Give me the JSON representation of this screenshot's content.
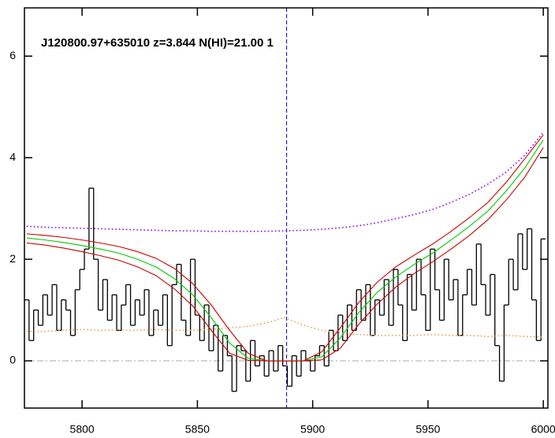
{
  "chart_data": {
    "type": "line",
    "title": "J120800.97+635010 z=3.844 N(HI)=21.00 1",
    "xlim": [
      5775,
      6002
    ],
    "ylim": [
      -0.93,
      6.95
    ],
    "xticks": [
      5800,
      5850,
      5900,
      5950,
      6000
    ],
    "yticks": [
      0,
      2,
      4,
      6
    ],
    "vline": {
      "value": 5888.7,
      "color": "#0000cc"
    },
    "hline": {
      "value": 0,
      "color": "#aaaaaa"
    },
    "series": [
      {
        "style": "steps",
        "color": "#000000",
        "x": [
          5776,
          5778,
          5780,
          5782,
          5784,
          5786,
          5788,
          5790,
          5792,
          5794,
          5796,
          5798,
          5800,
          5802,
          5804,
          5806,
          5808,
          5810,
          5812,
          5814,
          5816,
          5818,
          5820,
          5822,
          5824,
          5826,
          5828,
          5830,
          5832,
          5834,
          5836,
          5838,
          5840,
          5842,
          5844,
          5846,
          5848,
          5850,
          5852,
          5854,
          5856,
          5858,
          5860,
          5862,
          5864,
          5866,
          5868,
          5870,
          5872,
          5874,
          5876,
          5878,
          5880,
          5882,
          5884,
          5886,
          5888,
          5890,
          5892,
          5894,
          5896,
          5898,
          5900,
          5902,
          5904,
          5906,
          5908,
          5910,
          5912,
          5914,
          5916,
          5918,
          5920,
          5922,
          5924,
          5926,
          5928,
          5930,
          5932,
          5934,
          5936,
          5938,
          5940,
          5942,
          5944,
          5946,
          5948,
          5950,
          5952,
          5954,
          5956,
          5958,
          5960,
          5962,
          5964,
          5966,
          5968,
          5970,
          5972,
          5974,
          5976,
          5978,
          5980,
          5982,
          5984,
          5986,
          5988,
          5990,
          5992,
          5994,
          5996,
          5998,
          6000
        ],
        "values": [
          1.2,
          0.4,
          1.0,
          0.7,
          1.3,
          0.9,
          1.5,
          0.6,
          1.2,
          1.0,
          0.5,
          1.4,
          1.8,
          2.2,
          3.4,
          2.0,
          1.0,
          1.6,
          0.8,
          1.3,
          0.6,
          1.1,
          1.5,
          0.7,
          1.2,
          0.9,
          1.4,
          0.5,
          1.0,
          0.7,
          1.3,
          0.3,
          1.5,
          1.9,
          0.8,
          0.5,
          2.0,
          0.9,
          0.4,
          1.1,
          0.2,
          0.7,
          -0.2,
          0.5,
          0.1,
          -0.6,
          0.3,
          0.2,
          -0.4,
          0.4,
          -0.1,
          0.1,
          -0.3,
          0.2,
          -0.2,
          0.3,
          -0.1,
          -0.5,
          0.1,
          -0.3,
          0.2,
          0.0,
          -0.2,
          0.1,
          0.3,
          -0.1,
          0.6,
          0.2,
          0.9,
          0.4,
          1.1,
          0.6,
          1.4,
          0.8,
          1.5,
          0.5,
          1.2,
          0.9,
          1.6,
          0.7,
          1.8,
          1.1,
          0.4,
          1.7,
          1.0,
          2.0,
          1.3,
          0.6,
          2.2,
          1.4,
          0.8,
          2.0,
          1.2,
          1.6,
          0.5,
          1.3,
          1.8,
          1.1,
          2.3,
          1.5,
          0.9,
          1.7,
          0.3,
          -0.4,
          1.1,
          2.0,
          1.4,
          2.5,
          1.8,
          2.6,
          1.2,
          0.4,
          2.4
        ]
      },
      {
        "style": "dotted",
        "color": "#e8a050",
        "x": [
          5776,
          5784,
          5792,
          5800,
          5808,
          5816,
          5824,
          5832,
          5840,
          5848,
          5856,
          5864,
          5872,
          5880,
          5888,
          5896,
          5904,
          5912,
          5920,
          5928,
          5936,
          5944,
          5952,
          5960,
          5968,
          5976,
          5984,
          5992,
          6000
        ],
        "values": [
          0.58,
          0.58,
          0.6,
          0.62,
          0.6,
          0.61,
          0.6,
          0.62,
          0.6,
          0.6,
          0.62,
          0.65,
          0.68,
          0.75,
          0.85,
          0.7,
          0.6,
          0.55,
          0.52,
          0.5,
          0.5,
          0.5,
          0.52,
          0.5,
          0.5,
          0.48,
          0.5,
          0.48,
          0.47
        ]
      },
      {
        "style": "dotted",
        "color": "#8000ff",
        "x": [
          5776,
          5784,
          5792,
          5800,
          5808,
          5816,
          5824,
          5832,
          5840,
          5848,
          5856,
          5864,
          5872,
          5880,
          5888,
          5896,
          5904,
          5912,
          5920,
          5928,
          5936,
          5944,
          5952,
          5960,
          5968,
          5976,
          5984,
          5992,
          6000
        ],
        "values": [
          2.65,
          2.63,
          2.62,
          2.61,
          2.6,
          2.59,
          2.58,
          2.57,
          2.56,
          2.56,
          2.55,
          2.55,
          2.55,
          2.55,
          2.56,
          2.57,
          2.59,
          2.62,
          2.66,
          2.72,
          2.8,
          2.88,
          2.98,
          3.12,
          3.28,
          3.48,
          3.72,
          4.05,
          4.5
        ]
      },
      {
        "style": "solid",
        "color": "#00cc00",
        "x": [
          5776,
          5784,
          5792,
          5800,
          5808,
          5816,
          5824,
          5832,
          5840,
          5848,
          5856,
          5864,
          5872,
          5880,
          5888,
          5896,
          5904,
          5912,
          5920,
          5928,
          5936,
          5944,
          5952,
          5960,
          5968,
          5976,
          5984,
          5992,
          6000
        ],
        "values": [
          2.42,
          2.38,
          2.33,
          2.27,
          2.2,
          2.12,
          2.0,
          1.85,
          1.62,
          1.3,
          0.85,
          0.35,
          0.05,
          0.0,
          0.0,
          0.0,
          0.08,
          0.45,
          0.95,
          1.35,
          1.65,
          1.9,
          2.12,
          2.38,
          2.65,
          2.95,
          3.35,
          3.8,
          4.35
        ]
      },
      {
        "style": "solid",
        "color": "#cc0000",
        "x": [
          5776,
          5784,
          5792,
          5800,
          5808,
          5816,
          5824,
          5832,
          5840,
          5848,
          5856,
          5864,
          5872,
          5880,
          5888,
          5896,
          5904,
          5912,
          5920,
          5928,
          5936,
          5944,
          5952,
          5960,
          5968,
          5976,
          5984,
          5992,
          6000
        ],
        "values": [
          2.5,
          2.47,
          2.43,
          2.38,
          2.32,
          2.25,
          2.15,
          2.02,
          1.82,
          1.52,
          1.1,
          0.6,
          0.15,
          0.0,
          0.0,
          0.0,
          0.18,
          0.65,
          1.15,
          1.55,
          1.85,
          2.08,
          2.3,
          2.55,
          2.82,
          3.12,
          3.52,
          3.98,
          4.45
        ]
      },
      {
        "style": "solid",
        "color": "#cc0000",
        "x": [
          5776,
          5784,
          5792,
          5800,
          5808,
          5816,
          5824,
          5832,
          5840,
          5848,
          5856,
          5864,
          5872,
          5880,
          5888,
          5896,
          5904,
          5912,
          5920,
          5928,
          5936,
          5944,
          5952,
          5960,
          5968,
          5976,
          5984,
          5992,
          6000
        ],
        "values": [
          2.32,
          2.28,
          2.22,
          2.15,
          2.07,
          1.98,
          1.85,
          1.68,
          1.42,
          1.08,
          0.6,
          0.15,
          0.01,
          0.0,
          0.0,
          0.0,
          0.02,
          0.25,
          0.72,
          1.12,
          1.45,
          1.72,
          1.95,
          2.2,
          2.47,
          2.78,
          3.17,
          3.62,
          4.2
        ]
      }
    ]
  }
}
